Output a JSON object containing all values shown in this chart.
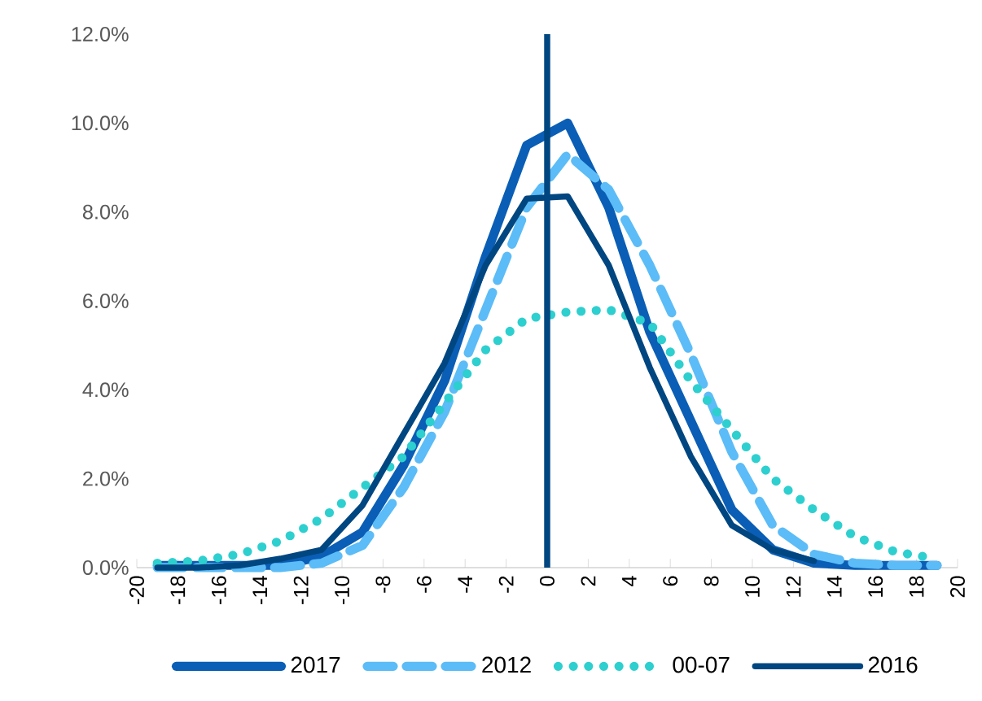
{
  "chart_data": {
    "type": "line",
    "x": [
      -19,
      -17,
      -15,
      -13,
      -11,
      -9,
      -7,
      -5,
      -3,
      -1,
      1,
      3,
      5,
      7,
      9,
      11,
      13,
      15,
      17,
      19
    ],
    "series": [
      {
        "name": "2017",
        "color": "#0a5eb5",
        "line_style": "solid",
        "values": [
          0.05,
          0.05,
          0.05,
          0.05,
          0.25,
          0.8,
          2.3,
          4.2,
          7.0,
          9.5,
          10.0,
          8.1,
          5.3,
          3.3,
          1.3,
          0.4,
          0.1,
          0.05,
          0.05,
          0.05
        ]
      },
      {
        "name": "2012",
        "color": "#5bbcf7",
        "line_style": "dashed",
        "values": [
          0.0,
          0.0,
          0.0,
          0.0,
          0.1,
          0.5,
          1.8,
          3.5,
          5.8,
          8.1,
          9.3,
          8.5,
          6.8,
          4.8,
          2.6,
          0.95,
          0.3,
          0.1,
          0.05,
          0.05
        ]
      },
      {
        "name": "00-07",
        "color": "#2ecfcf",
        "line_style": "dotted",
        "values": [
          0.1,
          0.15,
          0.3,
          0.6,
          1.1,
          1.8,
          2.5,
          3.7,
          4.9,
          5.6,
          5.75,
          5.8,
          5.5,
          4.2,
          3.1,
          2.0,
          1.3,
          0.7,
          0.35,
          0.2
        ]
      },
      {
        "name": "2016",
        "color": "#004680",
        "line_style": "solid",
        "values": [
          0.0,
          0.0,
          0.05,
          0.2,
          0.4,
          1.4,
          3.0,
          4.6,
          6.8,
          8.3,
          8.35,
          6.8,
          4.5,
          2.5,
          0.95,
          0.4,
          0.15,
          null,
          null,
          null
        ]
      }
    ],
    "xlim": [
      -20,
      20
    ],
    "xticks": [
      -20,
      -18,
      -16,
      -14,
      -12,
      -10,
      -8,
      -6,
      -4,
      -2,
      0,
      2,
      4,
      6,
      8,
      10,
      12,
      14,
      16,
      18,
      20
    ],
    "ylim": [
      0,
      12
    ],
    "yticks": [
      {
        "value": 0,
        "label": "0.0%"
      },
      {
        "value": 2,
        "label": "2.0%"
      },
      {
        "value": 4,
        "label": "4.0%"
      },
      {
        "value": 6,
        "label": "6.0%"
      },
      {
        "value": 8,
        "label": "8.0%"
      },
      {
        "value": 10,
        "label": "10.0%"
      },
      {
        "value": 12,
        "label": "12.0%"
      }
    ],
    "ref_lines": [
      {
        "axis": "x",
        "value": 0,
        "color": "#004680"
      }
    ],
    "grid": false,
    "legend": "bottom"
  }
}
